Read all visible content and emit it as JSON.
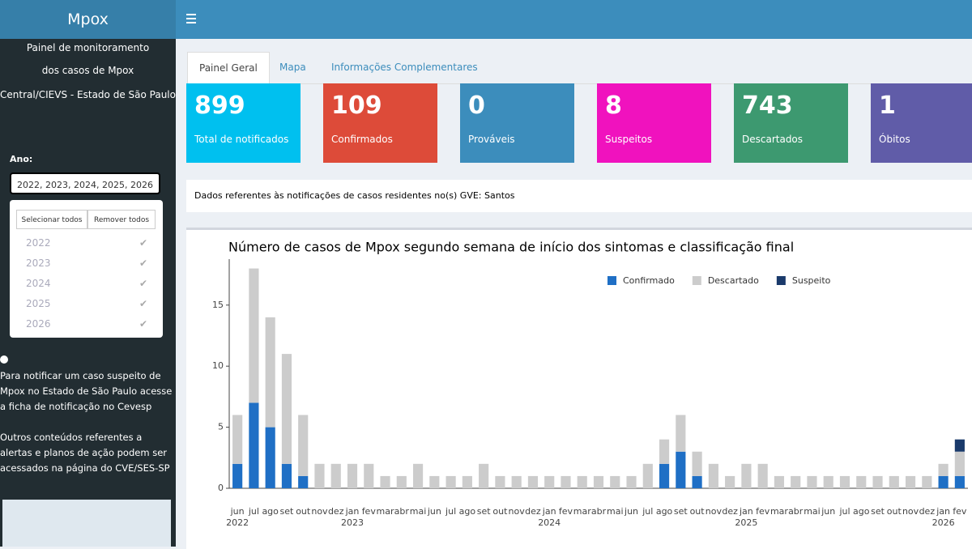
{
  "sidebar": {
    "title": "Mpox",
    "description": [
      "Painel de monitoramento",
      "dos casos de Mpox",
      "Central/CIEVS - Estado de São Paulo"
    ],
    "year_label": "Ano:",
    "selected": "2022, 2023, 2024, 2025, 2026",
    "buttons": [
      "Selecionar todos",
      "Remover todos"
    ],
    "years": [
      "2022",
      "2023",
      "2024",
      "2025",
      "2026"
    ],
    "info": [
      "Para notificar um caso suspeito de Mpox no Estado de São Paulo acesse a ficha de notificação no Cevesp",
      "Outros conteúdos referentes a alertas e planos de ação podem ser acessados na página do CVE/SES-SP"
    ]
  },
  "tabs": [
    "Painel Geral",
    "Mapa",
    "Informações Complementares"
  ],
  "value_boxes": [
    {
      "value": 899,
      "label": "Total de notificados",
      "color": "#00c0ef"
    },
    {
      "value": 109,
      "label": "Confirmados",
      "color": "#dd4b39"
    },
    {
      "value": 0,
      "label": "Prováveis",
      "color": "#3c8dbc"
    },
    {
      "value": 8,
      "label": "Suspeitos",
      "color": "#f012be"
    },
    {
      "value": 743,
      "label": "Descartados",
      "color": "#3d9970"
    },
    {
      "value": 1,
      "label": "Óbitos",
      "color": "#605ca8"
    }
  ],
  "note": "Dados referentes às notificações de casos residentes no(s) GVE: Santos",
  "chart_data": {
    "type": "bar",
    "stacked": true,
    "title": "Número de casos de Mpox segundo semana de início dos sintomas e classificação final",
    "categories": [
      "jun",
      "jul",
      "ago",
      "set",
      "out",
      "nov",
      "dez",
      "jan",
      "fev",
      "mar",
      "abr",
      "mai",
      "jun",
      "jul",
      "ago",
      "set",
      "out",
      "nov",
      "dez",
      "jan",
      "fev",
      "mar",
      "abr",
      "mai",
      "jun",
      "jul",
      "ago",
      "set",
      "out",
      "nov",
      "dez",
      "jan",
      "fev",
      "mar",
      "abr",
      "mai",
      "jun",
      "jul",
      "ago",
      "set",
      "out",
      "nov",
      "dez",
      "jan",
      "fev"
    ],
    "years": [
      "2022",
      "2023",
      "2024",
      "2025",
      "2026"
    ],
    "series": [
      {
        "name": "Confirmado",
        "color": "#1f6fc5",
        "values": [
          2,
          7,
          5,
          2,
          1,
          0,
          0,
          0,
          0,
          0,
          0,
          0,
          0,
          0,
          0,
          0,
          0,
          0,
          0,
          0,
          0,
          0,
          0,
          0,
          0,
          0,
          2,
          3,
          1,
          0,
          0,
          0,
          0,
          0,
          0,
          0,
          0,
          0,
          0,
          0,
          0,
          0,
          0,
          1,
          1
        ]
      },
      {
        "name": "Descartado",
        "color": "#cccccc",
        "values": [
          4,
          11,
          9,
          9,
          5,
          2,
          2,
          2,
          2,
          1,
          1,
          2,
          1,
          1,
          1,
          2,
          1,
          1,
          1,
          1,
          1,
          1,
          1,
          1,
          1,
          2,
          2,
          3,
          2,
          2,
          1,
          2,
          2,
          1,
          1,
          1,
          1,
          1,
          1,
          1,
          1,
          1,
          1,
          1,
          2
        ]
      },
      {
        "name": "Suspeito",
        "color": "#1a3a6b",
        "values": [
          0,
          0,
          0,
          0,
          0,
          0,
          0,
          0,
          0,
          0,
          0,
          0,
          0,
          0,
          0,
          0,
          0,
          0,
          0,
          0,
          0,
          0,
          0,
          0,
          0,
          0,
          0,
          0,
          0,
          0,
          0,
          0,
          0,
          0,
          0,
          0,
          0,
          0,
          0,
          0,
          0,
          0,
          0,
          0,
          1
        ]
      }
    ],
    "ylim": [
      0,
      18.5
    ],
    "yticks": [
      0,
      5,
      10,
      15
    ],
    "legend": "top-right",
    "grid": false
  }
}
